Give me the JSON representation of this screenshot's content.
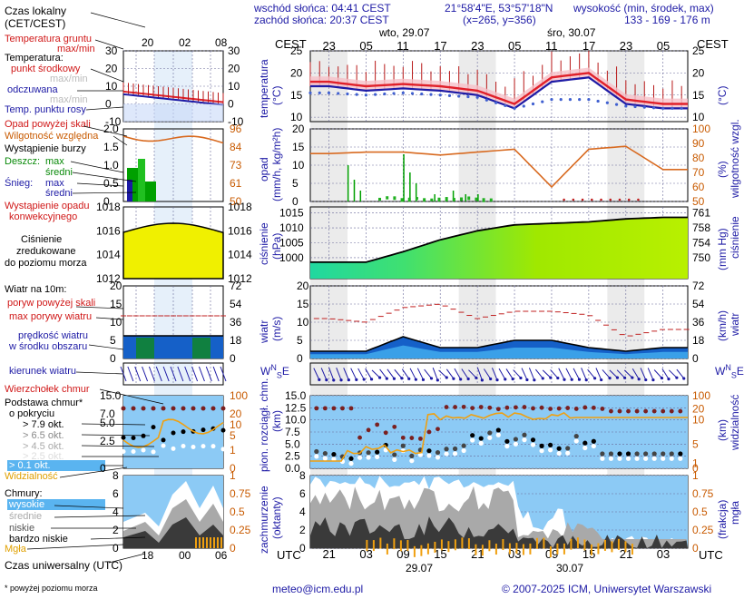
{
  "header": {
    "sunrise": "wschód słońca: 04:41 CEST",
    "sunset": "zachód słońca: 20:37 CEST",
    "coords": "21°58'4\"E, 53°57'18\"N",
    "grid": "(x=265, y=356)",
    "height_label": "wysokość (min, środek, max)",
    "height_values": "133 - 169 - 176 m"
  },
  "main_axis": {
    "tz_top": "CEST",
    "tz_bottom": "UTC",
    "day1": "wto, 29.07",
    "day2": "śro, 30.07",
    "top_hours": [
      "23",
      "05",
      "11",
      "17",
      "23",
      "05",
      "11",
      "17",
      "23",
      "05"
    ],
    "bottom_hours": [
      "21",
      "03",
      "09",
      "15",
      "21",
      "03",
      "09",
      "15",
      "21",
      "03"
    ],
    "bottom_dates": [
      "29.07",
      "30.07"
    ]
  },
  "legend": {
    "time_label": "Czas lokalny",
    "time_sub": "(CET/CEST)",
    "time_ticks": [
      "20",
      "02",
      "08"
    ],
    "ground_temp": "Temperatura gruntu",
    "maxmin": "max/min",
    "temperature": "Temperatura:",
    "temp_mid": "punkt środkowy",
    "temp_maxmin": "max/min",
    "felt": "odczuwana",
    "felt_maxmin": "max/min",
    "dew": "Temp. punktu rosy",
    "precip_over": "Opad powyżej skali",
    "humidity": "Wilgotność względna",
    "storm": "Wystąpienie burzy",
    "rain": "Deszcz:",
    "rain_max": "max",
    "rain_mean": "średni",
    "snow": "Śnieg:",
    "snow_max": "max",
    "snow_mean": "średni",
    "convective": "Wystąpienie opadu",
    "convective2": "konwekcyjnego",
    "pressure": "Ciśnienie",
    "pressure2": "zredukowane",
    "pressure3": "do poziomu morza",
    "wind_at": "Wiatr na 10m:",
    "gust_over": "poryw powyżej skali",
    "gust_max": "max porywy wiatru",
    "wind_speed": "prędkość wiatru",
    "wind_area": "w środku obszaru",
    "wind_dir": "kierunek wiatru",
    "cloud_top": "Wierzchołek chmur",
    "cloud_base": "Podstawa chmur*",
    "cover": "o pokryciu",
    "okt79": "> 7.9 okt.",
    "okt65": "> 6.5 okt.",
    "okt45": "> 4.5 okt.",
    "okt25": "> 2.5 okt.",
    "okt01": "> 0.1 okt.",
    "visibility": "Widzialność",
    "clouds": "Chmury:",
    "cl_high": "wysokie",
    "cl_mid": "średnie",
    "cl_low": "niskie",
    "cl_vlow": "bardzo niskie",
    "fog": "Mgła",
    "utc_label": "Czas uniwersalny (UTC)",
    "utc_ticks": [
      "18",
      "00",
      "06"
    ],
    "footnote": "* powyżej poziomu morza"
  },
  "axes": {
    "temperature": "temperatura",
    "temperature_unit": "(°C)",
    "precip": "opad",
    "precip_unit": "(mm/h, kg/m²h)",
    "humidity": "wilgotność wzgl.",
    "humidity_unit": "(%)",
    "pressure": "ciśnienie",
    "pressure_unit": "(hPa)",
    "pressure_unit2": "(mm Hg)",
    "wind": "wiatr",
    "wind_unit": "(m/s)",
    "wind_unit2": "(km/h)",
    "cloud": "pion. rozciągł. chm.",
    "cloud_unit": "(km)",
    "visibility": "widzialność",
    "visibility_unit": "(km)",
    "cover": "zachmurzenie",
    "cover_unit": "(oktanty)",
    "fog": "mgła",
    "fog_unit": "(frakcja)"
  },
  "footer": {
    "email": "meteo@icm.edu.pl",
    "copyright": "© 2007-2025 ICM, Uniwersytet Warszawski"
  },
  "colors": {
    "temp": "#e0202a",
    "felt": "#1d1aa5",
    "humidity": "#d86a20",
    "pressure_fill": "#9ee400",
    "wind_fill": "#1560c8",
    "sky": "#8ccaf5"
  },
  "chart_data": [
    {
      "type": "line",
      "name": "temperature",
      "x_hours_utc": [
        0,
        6,
        12,
        18,
        24,
        30,
        36,
        42,
        48,
        54
      ],
      "ylim": [
        9,
        25
      ],
      "yticks": [
        10,
        15,
        20,
        25
      ],
      "series": [
        {
          "name": "punkt środkowy",
          "values": [
            18,
            17,
            17.5,
            17,
            16,
            13,
            19,
            20,
            14,
            13
          ]
        },
        {
          "name": "odczuwana",
          "values": [
            17,
            16,
            16.5,
            16,
            15,
            12,
            18,
            19,
            13,
            12
          ]
        },
        {
          "name": "Temp. punktu rosy",
          "values": [
            15.5,
            15,
            15.5,
            15,
            14.5,
            12,
            14,
            14,
            12.5,
            12
          ]
        }
      ]
    },
    {
      "type": "line",
      "name": "humidity",
      "x_hours_utc": [
        0,
        6,
        12,
        18,
        24,
        30,
        36,
        42,
        48,
        54
      ],
      "ylim": [
        50,
        100
      ],
      "yticks": [
        50,
        60,
        70,
        80,
        90,
        100
      ],
      "series": [
        {
          "name": "Wilgotność względna",
          "values": [
            83,
            84,
            84,
            82,
            84,
            86,
            60,
            86,
            88,
            72
          ]
        }
      ]
    },
    {
      "type": "area",
      "name": "pressure",
      "x_hours_utc": [
        0,
        6,
        12,
        18,
        24,
        30,
        36,
        42,
        48,
        54
      ],
      "ylim": [
        993,
        1017
      ],
      "yticks": [
        1000,
        1005,
        1010,
        1015
      ],
      "yticks_right": [
        750,
        754,
        758,
        761
      ],
      "series": [
        {
          "name": "Ciśnienie",
          "values": [
            998.5,
            998.5,
            1002,
            1006,
            1009,
            1011,
            1011.5,
            1012,
            1013,
            1013.5
          ]
        }
      ]
    },
    {
      "type": "area",
      "name": "wind",
      "x_hours_utc": [
        0,
        6,
        12,
        18,
        24,
        30,
        36,
        42,
        48,
        54
      ],
      "ylim": [
        0,
        20
      ],
      "yticks": [
        0,
        5,
        10,
        15,
        20
      ],
      "yticks_right": [
        0,
        18,
        36,
        54,
        72
      ],
      "series": [
        {
          "name": "prędkość wiatru",
          "values": [
            2,
            2,
            6,
            3,
            3,
            5,
            5,
            3,
            2,
            3
          ]
        },
        {
          "name": "max porywy wiatru",
          "values": [
            11,
            10,
            14,
            15,
            11,
            13,
            13,
            12,
            6,
            8
          ]
        }
      ]
    },
    {
      "type": "scatter",
      "name": "cloud",
      "ylim": [
        0,
        15
      ],
      "yticks": [
        0,
        2.5,
        5,
        7.5,
        10,
        12.5,
        15
      ],
      "yticks_right": [
        0,
        1,
        5,
        10,
        20,
        100
      ]
    },
    {
      "type": "area",
      "name": "cover",
      "ylim": [
        0,
        8
      ],
      "yticks": [
        0,
        2,
        4,
        6,
        8
      ],
      "yticks_right": [
        0,
        0.25,
        0.5,
        0.75,
        1
      ]
    }
  ]
}
